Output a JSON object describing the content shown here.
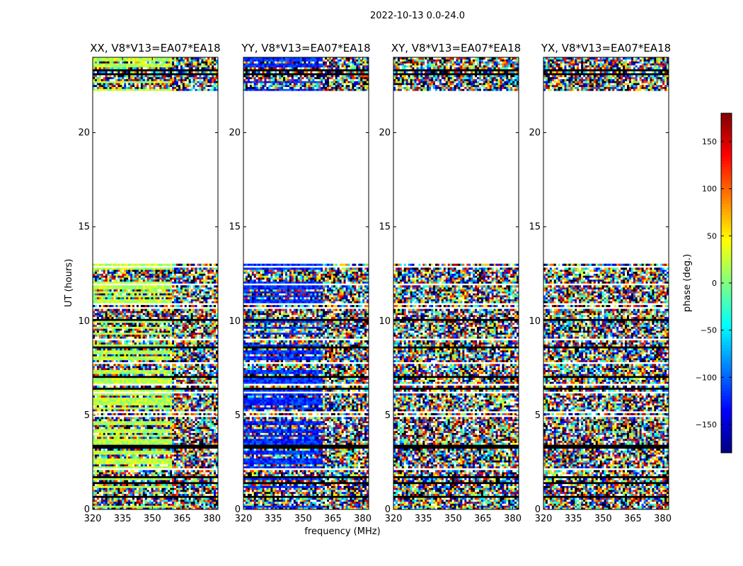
{
  "chart_data": {
    "type": "heatmap",
    "title": "2022-10-13 0.0-24.0",
    "xlabel": "frequency (MHz)",
    "ylabel": "UT (hours)",
    "xlim": [
      320,
      383
    ],
    "ylim": [
      0,
      24
    ],
    "x_ticks": [
      320,
      335,
      350,
      365,
      380
    ],
    "y_ticks": [
      0,
      5,
      10,
      15,
      20
    ],
    "data_gap_hours": [
      13.0,
      22.2
    ],
    "panels": [
      {
        "title": "XX, V8*V13=EA07*EA18",
        "dominant_phase_deg": 20
      },
      {
        "title": "YY, V8*V13=EA07*EA18",
        "dominant_phase_deg": -120
      },
      {
        "title": "XY, V8*V13=EA07*EA18",
        "dominant_phase_deg": null
      },
      {
        "title": "YX, V8*V13=EA07*EA18",
        "dominant_phase_deg": null
      }
    ],
    "colorbar": {
      "label": "phase (deg.)",
      "range": [
        -180,
        180
      ],
      "ticks": [
        150,
        100,
        50,
        0,
        -50,
        -100,
        -150
      ],
      "tick_labels": [
        "150",
        "100",
        "50",
        "0",
        "−50",
        "−100",
        "−150"
      ]
    }
  }
}
